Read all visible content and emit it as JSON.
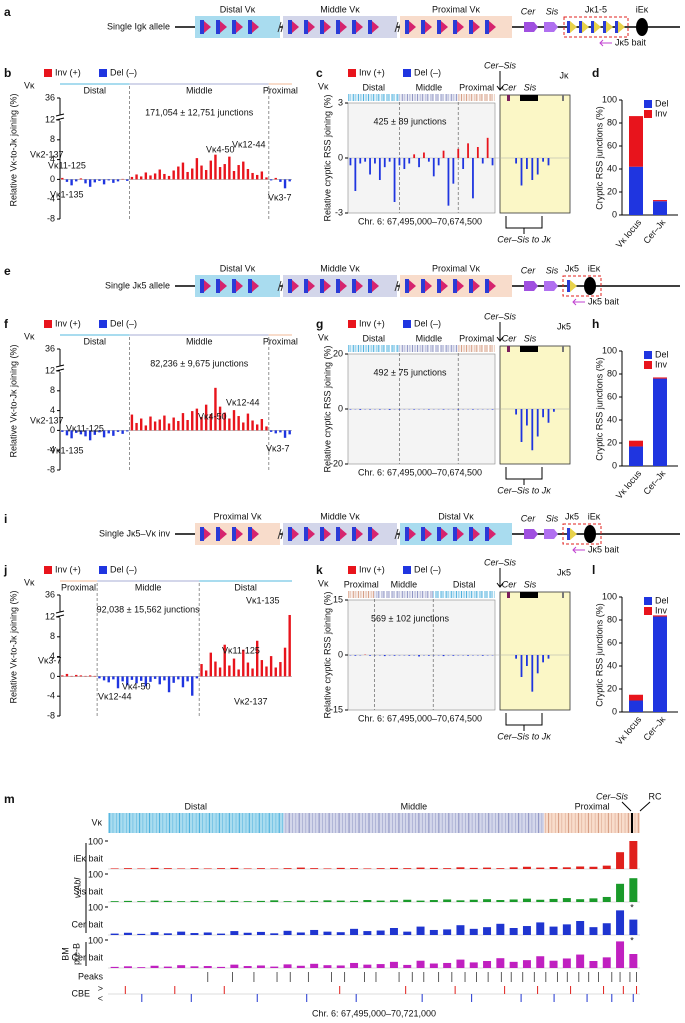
{
  "colors": {
    "inv": "#e8141c",
    "del": "#1f35e0"
  },
  "a": {
    "label": "a",
    "allele": "Single Igk allele",
    "distal": "Distal Vκ",
    "middle": "Middle Vκ",
    "proximal": "Proximal Vκ",
    "cer": "Cer",
    "sis": "Sis",
    "jk": "Jκ1-5",
    "iek": "iEκ",
    "bait": "Jκ5 bait"
  },
  "b": {
    "label": "b",
    "inv": "Inv (+)",
    "del": "Del (–)",
    "vk": "Vκ",
    "regions": [
      "Distal",
      "Middle",
      "Proximal"
    ],
    "junctions": "171,054 ± 12,751 junctions",
    "ylabel": "Relative Vκ-to-Jκ joining (%)",
    "ylim": [
      -8,
      36
    ],
    "yticks": [
      36,
      12,
      8,
      4,
      0,
      -4,
      -8
    ],
    "values": [
      0.3,
      -0.5,
      -1.2,
      -0.4,
      0.2,
      -0.8,
      -1.5,
      -0.6,
      -0.3,
      -1.0,
      -0.2,
      -0.7,
      -0.4,
      0.1,
      -0.3,
      0.5,
      1.0,
      0.6,
      1.4,
      0.8,
      1.2,
      2.0,
      1.1,
      0.7,
      1.8,
      2.6,
      3.4,
      1.5,
      2.2,
      4.3,
      2.8,
      1.9,
      3.8,
      5.0,
      2.5,
      3.1,
      4.6,
      1.7,
      2.9,
      3.6,
      2.1,
      1.3,
      0.9,
      1.6,
      0.4,
      -0.2,
      0.3,
      -0.5,
      -1.8,
      -0.4
    ],
    "genes": [
      "Vκ2-137",
      "Vκ11-125",
      "Vκ1-135",
      "Vκ4-50",
      "Vκ12-44",
      "Vκ3-7"
    ]
  },
  "c": {
    "label": "c",
    "inv": "Inv (+)",
    "del": "Del (–)",
    "vk": "Vκ",
    "regions": [
      "Distal",
      "Middle",
      "Proximal"
    ],
    "cersis": "Cer–Sis",
    "cer": "Cer",
    "sis": "Sis",
    "jk": "Jκ",
    "junctions": "425 ± 89 junctions",
    "ylabel": "Relative cryptic RSS joining (%)",
    "ylim": [
      -3,
      3
    ],
    "yticks": [
      3,
      0,
      -3
    ],
    "values": [
      -0.4,
      -1.8,
      -0.3,
      -0.2,
      -0.9,
      -0.3,
      -1.2,
      -0.5,
      -0.2,
      -2.4,
      -0.4,
      -0.6,
      -0.3,
      0.2,
      -0.5,
      0.3,
      -0.2,
      -1.0,
      -0.4,
      0.4,
      -2.6,
      -1.4,
      0.5,
      -0.6,
      0.8,
      -2.2,
      0.6,
      -0.3,
      1.1,
      -0.4
    ],
    "inset": [
      0,
      -0.3,
      -1.5,
      -0.6,
      -1.2,
      -0.9,
      -0.2,
      -0.4,
      0,
      0
    ],
    "chr": "Chr. 6: 67,495,000–70,674,500",
    "bracket": "Cer–Sis to Jκ"
  },
  "d": {
    "label": "d",
    "ylabel": "Cryptic RSS junctions (%)",
    "ylim": [
      0,
      100
    ],
    "yticks": [
      0,
      20,
      40,
      60,
      80,
      100
    ],
    "categories": [
      "Vκ locus",
      "Cer–Jκ"
    ],
    "series": [
      {
        "name": "Del",
        "color": "#1f35e0",
        "values": [
          42,
          12
        ]
      },
      {
        "name": "Inv",
        "color": "#e8141c",
        "values": [
          44,
          1
        ]
      }
    ]
  },
  "e": {
    "label": "e",
    "allele": "Single Jκ5 allele",
    "distal": "Distal Vκ",
    "middle": "Middle Vκ",
    "proximal": "Proximal Vκ",
    "cer": "Cer",
    "sis": "Sis",
    "jk": "Jκ5",
    "iek": "iEκ",
    "bait": "Jκ5 bait"
  },
  "f": {
    "label": "f",
    "inv": "Inv (+)",
    "del": "Del (–)",
    "vk": "Vκ",
    "regions": [
      "Distal",
      "Middle",
      "Proximal"
    ],
    "junctions": "82,236 ± 9,675 junctions",
    "ylabel": "Relative Vκ-to-Jκ joining (%)",
    "ylim": [
      -8,
      36
    ],
    "yticks": [
      36,
      12,
      8,
      4,
      0,
      -4,
      -8
    ],
    "values": [
      -0.3,
      -1.0,
      -1.6,
      -0.5,
      -0.8,
      -1.2,
      -2.0,
      -0.9,
      -0.4,
      -1.4,
      -0.6,
      -1.1,
      -0.3,
      -0.7,
      -0.2,
      3.2,
      1.5,
      2.4,
      1.0,
      2.8,
      1.8,
      2.2,
      3.0,
      1.4,
      2.6,
      1.9,
      3.5,
      2.1,
      3.9,
      4.4,
      2.7,
      5.2,
      3.3,
      8.6,
      4.8,
      3.6,
      2.4,
      4.1,
      2.9,
      1.6,
      3.4,
      2.0,
      1.2,
      2.3,
      0.8,
      -0.3,
      -0.6,
      -0.4,
      -1.5,
      -0.8
    ],
    "genes": [
      "Vκ2-137",
      "Vκ11-125",
      "Vκ1-135",
      "Vκ4-50",
      "Vκ12-44",
      "Vκ3-7"
    ]
  },
  "g": {
    "label": "g",
    "inv": "Inv (+)",
    "del": "Del (–)",
    "vk": "Vκ",
    "regions": [
      "Distal",
      "Middle",
      "Proximal"
    ],
    "cersis": "Cer–Sis",
    "cer": "Cer",
    "sis": "Sis",
    "jk": "Jκ5",
    "junctions": "492 ± 75 junctions",
    "ylabel": "Relative cryptic RSS joining (%)",
    "ylim": [
      -20,
      20
    ],
    "yticks": [
      20,
      0,
      -20
    ],
    "values": [
      -0.2,
      -0.1,
      -0.3,
      -0.1,
      -0.2,
      -0.1,
      -0.2,
      -0.1,
      -0.3,
      -0.1,
      -0.2,
      -0.1,
      -0.1,
      -0.2,
      -0.1,
      -0.1,
      -0.2,
      -0.1,
      -0.1,
      -0.2,
      -0.1,
      -0.1,
      -0.2,
      -0.1,
      -0.1,
      -0.2,
      -0.1,
      -0.1,
      -0.1,
      -0.2
    ],
    "inset": [
      0,
      -2,
      -12,
      -6,
      -15,
      -10,
      -3,
      -5,
      -1,
      0
    ],
    "chr": "Chr. 6: 67,495,000–70,674,500",
    "bracket": "Cer–Sis to Jκ"
  },
  "h": {
    "label": "h",
    "ylabel": "Cryptic RSS junctions (%)",
    "ylim": [
      0,
      100
    ],
    "yticks": [
      0,
      20,
      40,
      60,
      80,
      100
    ],
    "categories": [
      "Vκ locus",
      "Cer–Jκ"
    ],
    "series": [
      {
        "name": "Del",
        "color": "#1f35e0",
        "values": [
          17,
          76
        ]
      },
      {
        "name": "Inv",
        "color": "#e8141c",
        "values": [
          5,
          1
        ]
      }
    ]
  },
  "i": {
    "label": "i",
    "allele": "Single Jκ5–Vκ inv",
    "distal": "Distal Vκ",
    "middle": "Middle Vκ",
    "proximal": "Proximal Vκ",
    "cer": "Cer",
    "sis": "Sis",
    "jk": "Jκ5",
    "iek": "iEκ",
    "bait": "Jκ5 bait"
  },
  "j": {
    "label": "j",
    "inv": "Inv (+)",
    "del": "Del (–)",
    "vk": "Vκ",
    "regions": [
      "Proximal",
      "Middle",
      "Distal"
    ],
    "junctions": "92,038 ± 15,562 junctions",
    "ylabel": "Relative Vκ-to-Jκ joining (%)",
    "ylim": [
      -8,
      36
    ],
    "yticks": [
      36,
      12,
      8,
      4,
      0,
      -4,
      -8
    ],
    "values": [
      0.2,
      0.5,
      0.1,
      0.3,
      0.2,
      0.1,
      0.2,
      0.1,
      -0.4,
      -0.8,
      -1.2,
      -0.6,
      -2.4,
      -1.0,
      -1.8,
      -0.7,
      -1.4,
      -0.9,
      -2.0,
      -1.1,
      -0.5,
      -1.6,
      -0.8,
      -3.2,
      -1.3,
      -0.6,
      -2.2,
      -1.0,
      -3.9,
      -0.4,
      2.5,
      1.2,
      4.8,
      3.0,
      1.8,
      6.4,
      2.2,
      3.6,
      1.4,
      5.4,
      2.8,
      1.6,
      7.2,
      3.3,
      2.0,
      4.1,
      1.8,
      2.9,
      5.8,
      14.2
    ],
    "genes": [
      "Vκ3-7",
      "Vκ12-44",
      "Vκ4-50",
      "Vκ11-125",
      "Vκ1-135",
      "Vκ2-137"
    ]
  },
  "k": {
    "label": "k",
    "inv": "Inv (+)",
    "del": "Del (–)",
    "vk": "Vκ",
    "regions": [
      "Proximal",
      "Middle",
      "Distal"
    ],
    "cersis": "Cer–Sis",
    "cer": "Cer",
    "sis": "Sis",
    "jk": "Jκ5",
    "junctions": "569 ± 102 junctions",
    "ylabel": "Relative cryptic RSS joining (%)",
    "ylim": [
      -15,
      15
    ],
    "yticks": [
      15,
      0,
      -15
    ],
    "values": [
      -0.1,
      -0.2,
      -0.1,
      0.1,
      -0.2,
      -0.1,
      -0.1,
      -0.3,
      -0.1,
      -0.2,
      -0.1,
      -0.1,
      -0.2,
      -0.1,
      -0.4,
      -0.1,
      -0.2,
      -0.1,
      -0.1,
      -0.3,
      -0.1,
      -0.2,
      -0.1,
      -0.1,
      -0.2,
      -0.1,
      -0.1,
      -0.2,
      -0.1,
      -0.1
    ],
    "inset": [
      0,
      -1,
      -6,
      -3,
      -10,
      -5,
      -2,
      -1,
      0,
      0
    ],
    "chr": "Chr. 6: 67,495,000–70,674,500",
    "bracket": "Cer–Sis to Jκ"
  },
  "l": {
    "label": "l",
    "ylabel": "Cryptic RSS junctions (%)",
    "ylim": [
      0,
      100
    ],
    "yticks": [
      0,
      20,
      40,
      60,
      80,
      100
    ],
    "categories": [
      "Vκ locus",
      "Cer–Jκ"
    ],
    "series": [
      {
        "name": "Del",
        "color": "#1f35e0",
        "values": [
          10,
          83
        ]
      },
      {
        "name": "Inv",
        "color": "#e8141c",
        "values": [
          5,
          1
        ]
      }
    ]
  },
  "m": {
    "label": "m",
    "vk": "Vκ",
    "regions": [
      "Distal",
      "Middle",
      "Proximal"
    ],
    "cersis": "Cer–Sis",
    "rc": "RC",
    "star": "*",
    "vabl": "v-Abl",
    "bm": "BM",
    "preb": "pre-B",
    "ylim": [
      0,
      100
    ],
    "yticks": [
      100
    ],
    "tracks": [
      {
        "name": "iEκ bait",
        "color": "#e0201c",
        "values": [
          2,
          3,
          2,
          4,
          3,
          2,
          3,
          2,
          3,
          4,
          2,
          3,
          2,
          3,
          5,
          3,
          2,
          4,
          3,
          2,
          3,
          4,
          3,
          5,
          4,
          3,
          6,
          4,
          5,
          3,
          6,
          8,
          5,
          7,
          6,
          9,
          8,
          12,
          60,
          100
        ]
      },
      {
        "name": "Sis bait",
        "color": "#1a9a2a",
        "values": [
          3,
          4,
          3,
          5,
          4,
          3,
          4,
          3,
          5,
          4,
          3,
          4,
          6,
          3,
          5,
          4,
          6,
          5,
          4,
          7,
          5,
          6,
          8,
          5,
          7,
          9,
          6,
          8,
          10,
          7,
          9,
          12,
          8,
          11,
          14,
          10,
          13,
          18,
          65,
          85
        ]
      },
      {
        "name": "Cer bait",
        "color": "#1f35d0",
        "values": [
          5,
          8,
          4,
          10,
          6,
          12,
          7,
          9,
          5,
          14,
          8,
          11,
          6,
          15,
          9,
          18,
          12,
          10,
          22,
          14,
          16,
          25,
          12,
          30,
          18,
          20,
          35,
          22,
          28,
          40,
          25,
          32,
          45,
          30,
          38,
          50,
          28,
          42,
          88,
          55
        ]
      },
      {
        "name": "Cer bait",
        "color": "#c020c0",
        "values": [
          4,
          6,
          3,
          8,
          5,
          10,
          6,
          7,
          4,
          12,
          7,
          9,
          5,
          13,
          8,
          15,
          10,
          9,
          18,
          12,
          14,
          22,
          11,
          26,
          16,
          18,
          30,
          20,
          25,
          35,
          22,
          28,
          42,
          26,
          34,
          48,
          25,
          38,
          95,
          50
        ]
      }
    ],
    "peaks_label": "Peaks",
    "peaks": [
      68100000,
      68250000,
      68380000,
      68520000,
      68600000,
      68710000,
      68850000,
      68930000,
      69050000,
      69120000,
      69260000,
      69340000,
      69410000,
      69500000,
      69580000,
      69660000,
      69730000,
      69800000,
      69880000,
      69940000,
      70010000,
      70080000,
      70150000,
      70220000,
      70280000,
      70350000,
      70410000,
      70470000,
      70550000,
      70600000,
      70660000,
      70700000
    ],
    "cbe_label": "CBE",
    "fwd": ">",
    "rev": "<",
    "cbe_fwd": [
      67600000,
      67900000,
      68200000,
      68900000,
      69300000,
      69600000,
      69900000,
      70100000,
      70300000,
      70500000,
      70620000,
      70700000
    ],
    "cbe_rev": [
      67700000,
      68000000,
      68400000,
      68700000,
      69000000,
      69400000,
      69700000,
      70000000,
      70200000,
      70400000,
      70550000,
      70680000
    ],
    "xlim": [
      67495000,
      70721000
    ],
    "chr": "Chr. 6: 67,495,000–70,721,000"
  }
}
